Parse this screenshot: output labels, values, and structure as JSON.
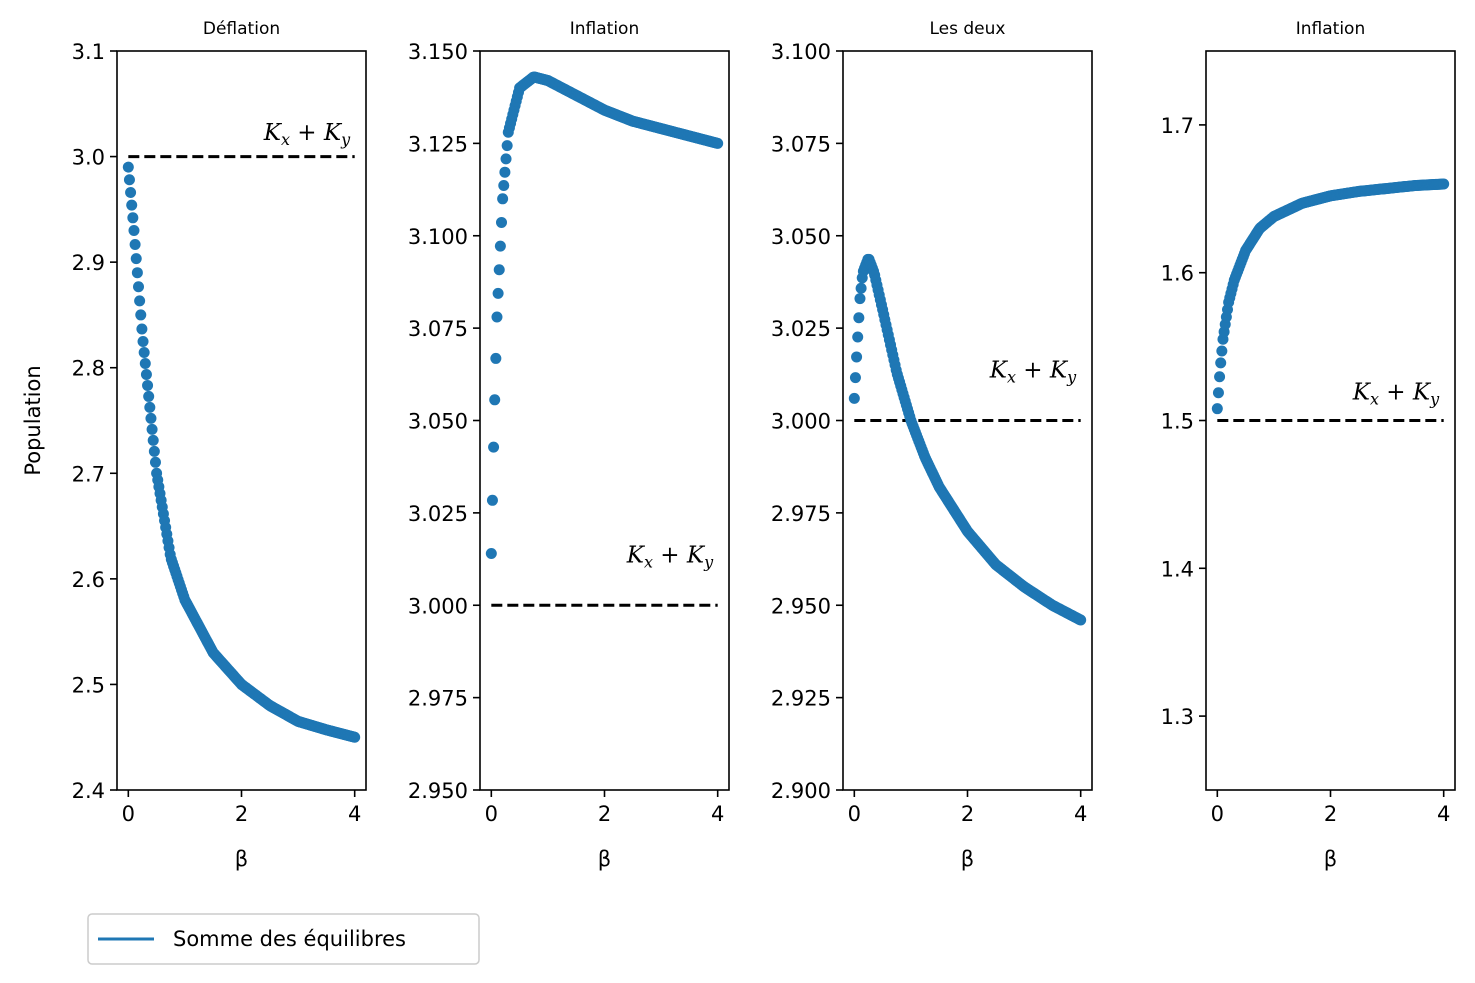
{
  "chart_data": [
    {
      "type": "scatter",
      "title": "Déflation",
      "xlabel": "β",
      "ylabel": "Population",
      "xlim": [
        0,
        4
      ],
      "ylim": [
        2.4,
        3.1
      ],
      "xticks": [
        "0",
        "2",
        "4"
      ],
      "yticks": [
        "2.4",
        "2.5",
        "2.6",
        "2.7",
        "2.8",
        "2.9",
        "3.0",
        "3.1"
      ],
      "reference_line": {
        "y": 3.0,
        "style": "dashed",
        "label": "K_x + K_y"
      },
      "series": [
        {
          "name": "Somme des équilibres",
          "x": [
            0.0,
            0.1,
            0.25,
            0.5,
            0.75,
            1.0,
            1.5,
            2.0,
            2.5,
            3.0,
            3.5,
            4.0
          ],
          "y": [
            2.99,
            2.93,
            2.83,
            2.7,
            2.62,
            2.58,
            2.53,
            2.5,
            2.48,
            2.465,
            2.457,
            2.45
          ]
        }
      ]
    },
    {
      "type": "scatter",
      "title": "Inflation",
      "xlabel": "β",
      "ylabel": "",
      "xlim": [
        0,
        4
      ],
      "ylim": [
        2.95,
        3.15
      ],
      "xticks": [
        "0",
        "2",
        "4"
      ],
      "yticks": [
        "2.950",
        "2.975",
        "3.000",
        "3.025",
        "3.050",
        "3.075",
        "3.100",
        "3.125",
        "3.150"
      ],
      "reference_line": {
        "y": 3.0,
        "style": "dashed",
        "label": "K_x + K_y"
      },
      "series": [
        {
          "name": "Somme des équilibres",
          "x": [
            0.0,
            0.05,
            0.1,
            0.2,
            0.3,
            0.5,
            0.75,
            1.0,
            1.5,
            2.0,
            2.5,
            3.0,
            3.5,
            4.0
          ],
          "y": [
            3.014,
            3.05,
            3.078,
            3.11,
            3.128,
            3.14,
            3.143,
            3.142,
            3.138,
            3.134,
            3.131,
            3.129,
            3.127,
            3.125
          ]
        }
      ]
    },
    {
      "type": "scatter",
      "title": "Les deux",
      "xlabel": "β",
      "ylabel": "",
      "xlim": [
        0,
        4
      ],
      "ylim": [
        2.9,
        3.1
      ],
      "xticks": [
        "0",
        "2",
        "4"
      ],
      "yticks": [
        "2.900",
        "2.925",
        "2.950",
        "2.975",
        "3.000",
        "3.025",
        "3.050",
        "3.075",
        "3.100"
      ],
      "reference_line": {
        "y": 3.0,
        "style": "dashed",
        "label": "K_x + K_y"
      },
      "series": [
        {
          "name": "Somme des équilibres",
          "x": [
            0.0,
            0.05,
            0.1,
            0.15,
            0.25,
            0.35,
            0.5,
            0.75,
            1.0,
            1.25,
            1.5,
            2.0,
            2.5,
            3.0,
            3.5,
            4.0
          ],
          "y": [
            3.006,
            3.02,
            3.033,
            3.04,
            3.044,
            3.04,
            3.03,
            3.013,
            3.0,
            2.99,
            2.982,
            2.97,
            2.961,
            2.955,
            2.95,
            2.946
          ]
        }
      ]
    },
    {
      "type": "scatter",
      "title": "Inflation",
      "xlabel": "β",
      "ylabel": "",
      "xlim": [
        0,
        4
      ],
      "ylim": [
        1.25,
        1.75
      ],
      "xticks": [
        "0",
        "2",
        "4"
      ],
      "yticks": [
        "1.3",
        "1.4",
        "1.5",
        "1.6",
        "1.7"
      ],
      "reference_line": {
        "y": 1.5,
        "style": "dashed",
        "label": "K_x + K_y"
      },
      "series": [
        {
          "name": "Somme des équilibres",
          "x": [
            0.0,
            0.05,
            0.1,
            0.2,
            0.3,
            0.5,
            0.75,
            1.0,
            1.5,
            2.0,
            2.5,
            3.0,
            3.5,
            4.0
          ],
          "y": [
            1.508,
            1.535,
            1.555,
            1.58,
            1.595,
            1.615,
            1.63,
            1.638,
            1.647,
            1.652,
            1.655,
            1.657,
            1.659,
            1.66
          ]
        }
      ]
    }
  ],
  "legend": {
    "label": "Somme des équilibres",
    "color": "#1f77b4"
  },
  "colors": {
    "series": "#1f77b4",
    "reference": "#000000"
  }
}
